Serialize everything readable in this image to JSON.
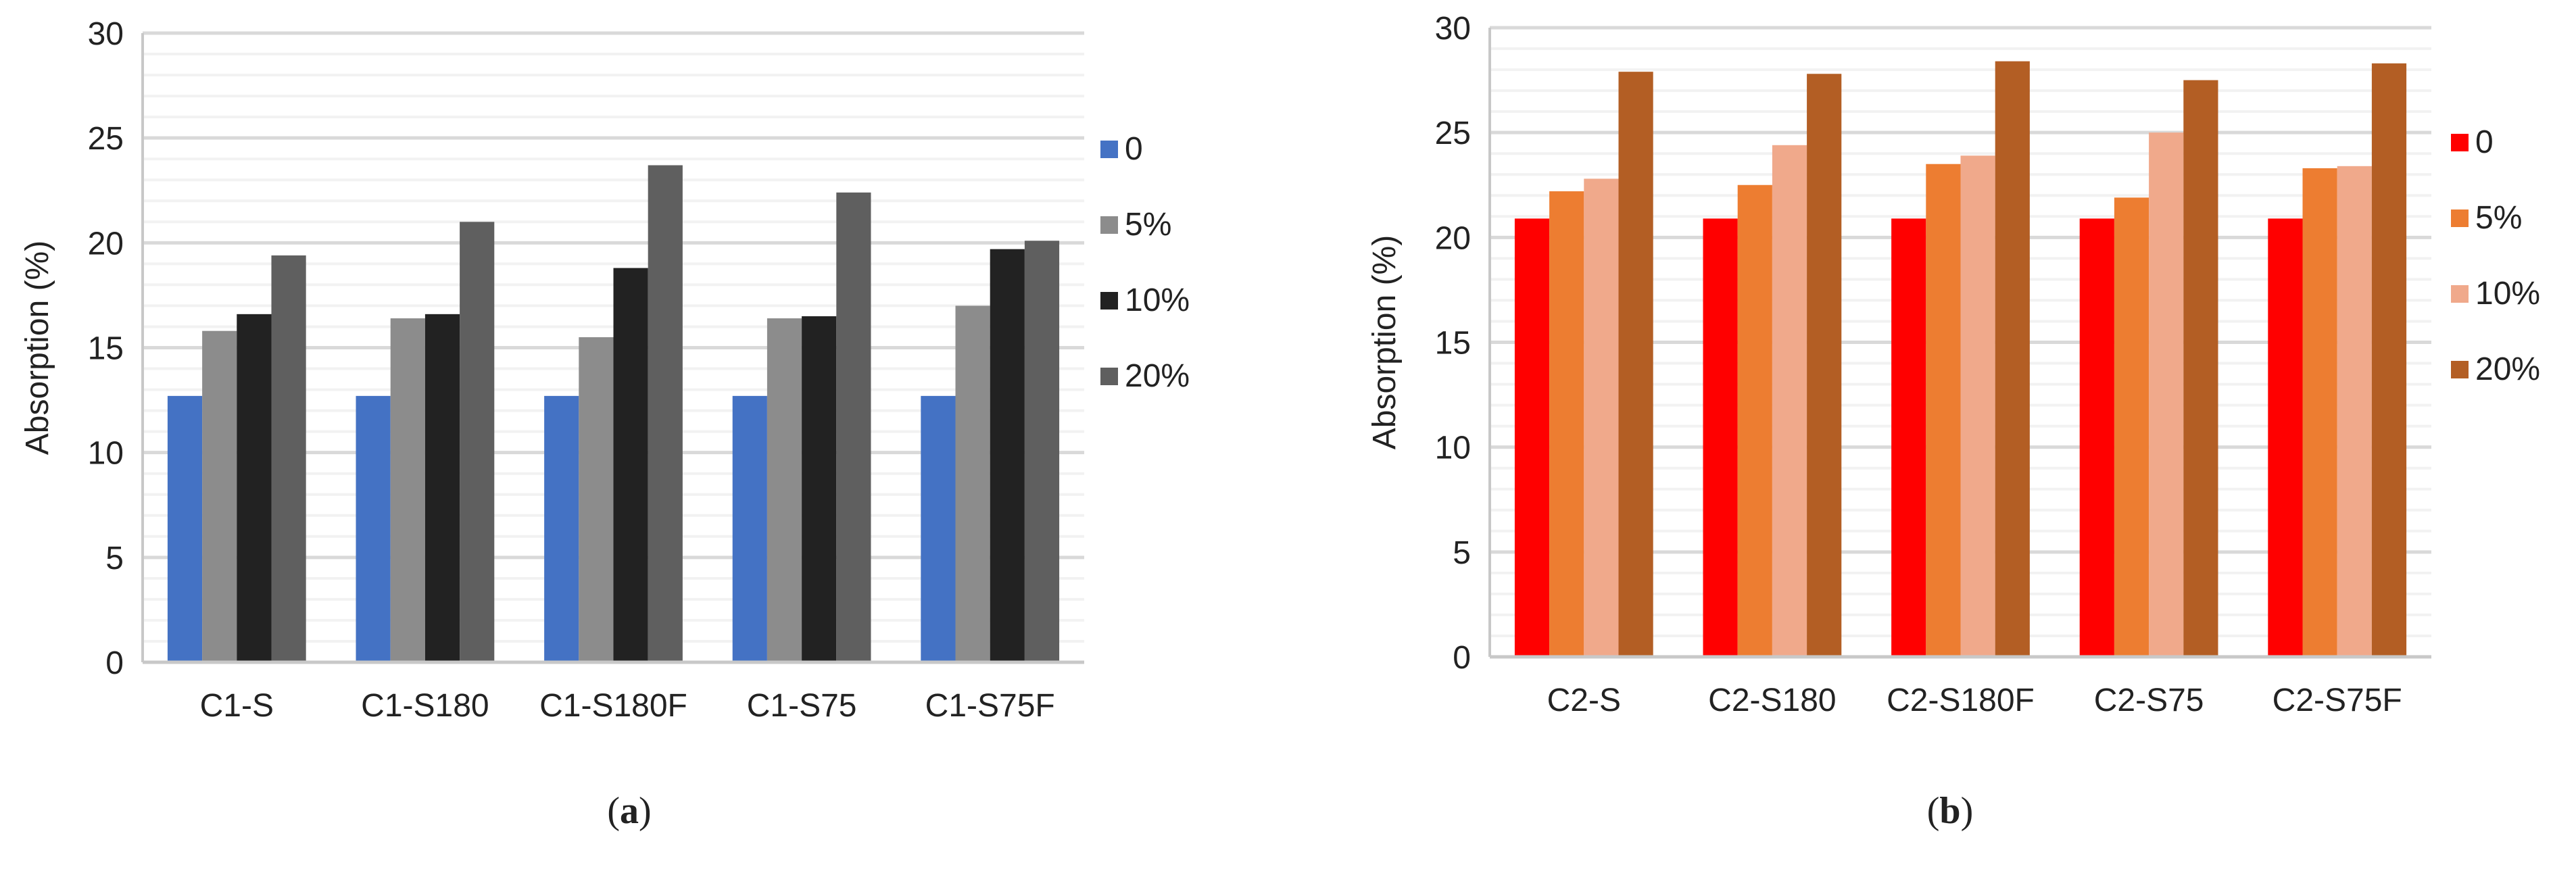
{
  "chart_data": [
    {
      "type": "bar",
      "caption_label": "a",
      "ylabel": "Absorption (%)",
      "ylim": [
        0,
        30
      ],
      "yticks": [
        0,
        5,
        10,
        15,
        20,
        25,
        30
      ],
      "grid": true,
      "legend_position": "right",
      "categories": [
        "C1-S",
        "C1-S180",
        "C1-S180F",
        "C1-S75",
        "C1-S75F"
      ],
      "series": [
        {
          "name": "0",
          "color": "#4472C4",
          "values": [
            12.7,
            12.7,
            12.7,
            12.7,
            12.7
          ]
        },
        {
          "name": "5%",
          "color": "#8C8C8C",
          "values": [
            15.8,
            16.4,
            15.5,
            16.4,
            17.0
          ]
        },
        {
          "name": "10%",
          "color": "#222222",
          "values": [
            16.6,
            16.6,
            18.8,
            16.5,
            19.7
          ]
        },
        {
          "name": "20%",
          "color": "#5F5F5F",
          "values": [
            19.4,
            21.0,
            23.7,
            22.4,
            20.1
          ]
        }
      ]
    },
    {
      "type": "bar",
      "caption_label": "b",
      "ylabel": "Absorption (%)",
      "ylim": [
        0,
        30
      ],
      "yticks": [
        0,
        5,
        10,
        15,
        20,
        25,
        30
      ],
      "grid": true,
      "legend_position": "right",
      "categories": [
        "C2-S",
        "C2-S180",
        "C2-S180F",
        "C2-S75",
        "C2-S75F"
      ],
      "series": [
        {
          "name": "0",
          "color": "#FF0000",
          "values": [
            20.9,
            20.9,
            20.9,
            20.9,
            20.9
          ]
        },
        {
          "name": "5%",
          "color": "#ED7D31",
          "values": [
            22.2,
            22.5,
            23.5,
            21.9,
            23.3
          ]
        },
        {
          "name": "10%",
          "color": "#F0A98B",
          "values": [
            22.8,
            24.4,
            23.9,
            25.0,
            23.4
          ]
        },
        {
          "name": "20%",
          "color": "#B35E24",
          "values": [
            27.9,
            27.8,
            28.4,
            27.5,
            28.3
          ]
        }
      ]
    }
  ]
}
